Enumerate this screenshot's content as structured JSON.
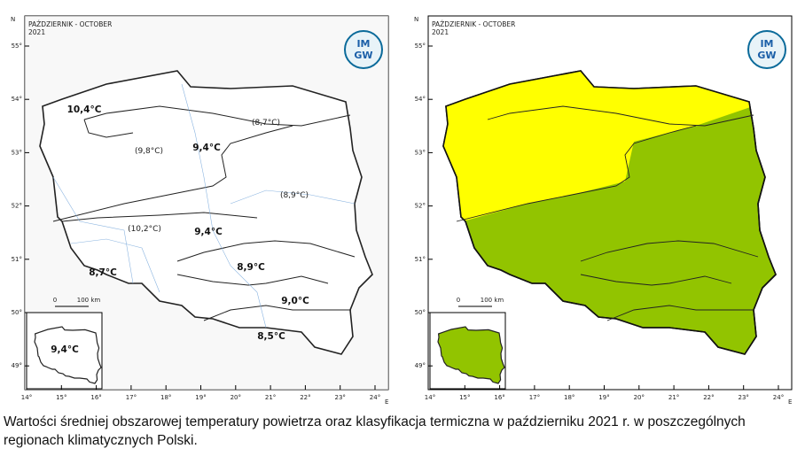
{
  "maps": [
    {
      "header": {
        "title": "PAŹDZIERNIK - OCTOBER",
        "year": "2021"
      },
      "logo": [
        "IM",
        "GW"
      ],
      "north": "N",
      "east": "E",
      "lat_labels": [
        "55°",
        "54°",
        "53°",
        "52°",
        "51°",
        "50°",
        "49°"
      ],
      "lon_labels": [
        "14°",
        "15°",
        "16°",
        "17°",
        "18°",
        "19°",
        "20°",
        "21°",
        "22°",
        "23°",
        "24°"
      ],
      "scale": [
        "0",
        "100 km"
      ],
      "regions": [
        "10,4°C",
        "(8,7°C)",
        "(9,8°C)",
        "9,4°C",
        "(8,9°C)",
        "(10,2°C)",
        "9,4°C",
        "8,9°C",
        "8,7°C",
        "9,0°C",
        "8,5°C"
      ],
      "inset_label": "9,4°C"
    },
    {
      "header": {
        "title": "PAŹDZIERNIK - OCTOBER",
        "year": "2021"
      },
      "logo": [
        "IM",
        "GW"
      ],
      "north": "N",
      "east": "E",
      "lat_labels": [
        "55°",
        "54°",
        "53°",
        "52°",
        "51°",
        "50°",
        "49°"
      ],
      "lon_labels": [
        "14°",
        "15°",
        "16°",
        "17°",
        "18°",
        "19°",
        "20°",
        "21°",
        "22°",
        "23°",
        "24°"
      ],
      "scale": [
        "0",
        "100 km"
      ]
    }
  ],
  "caption": "Wartości średniej obszarowej temperatury powietrza oraz klasyfikacja termiczna w październiku 2021 r. w poszczególnych regionach klimatycznych Polski."
}
